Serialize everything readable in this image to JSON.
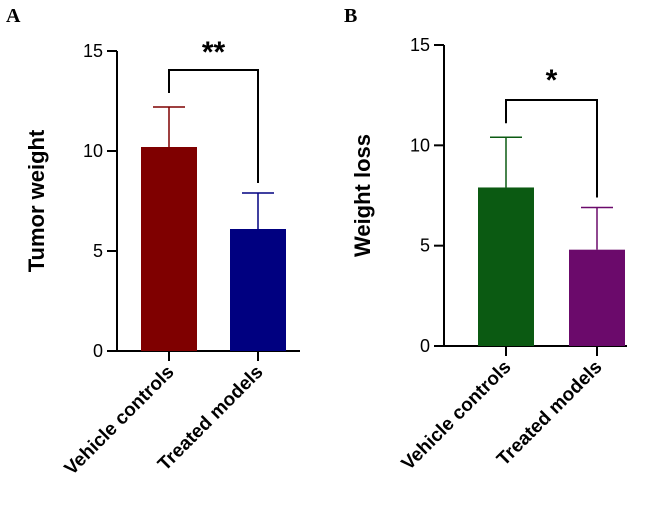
{
  "chart_data": [
    {
      "panel": "A",
      "type": "bar",
      "categories": [
        "Vehicle controls",
        "Treated models"
      ],
      "values": [
        10.2,
        6.1
      ],
      "error_upper": [
        12.2,
        7.9
      ],
      "colors": [
        "#7f0000",
        "#000080"
      ],
      "ylabel": "Tumor weight",
      "xlabel": "",
      "ylim": [
        0,
        15
      ],
      "yticks": [
        0,
        5,
        10,
        15
      ],
      "significance": "**",
      "grid": false
    },
    {
      "panel": "B",
      "type": "bar",
      "categories": [
        "Vehicle controls",
        "Treated models"
      ],
      "values": [
        7.9,
        4.8
      ],
      "error_upper": [
        10.4,
        6.9
      ],
      "colors": [
        "#0b5a12",
        "#6b0a6b"
      ],
      "ylabel": "Weight loss",
      "xlabel": "",
      "ylim": [
        0,
        15
      ],
      "yticks": [
        0,
        5,
        10,
        15
      ],
      "significance": "*",
      "grid": false
    }
  ]
}
